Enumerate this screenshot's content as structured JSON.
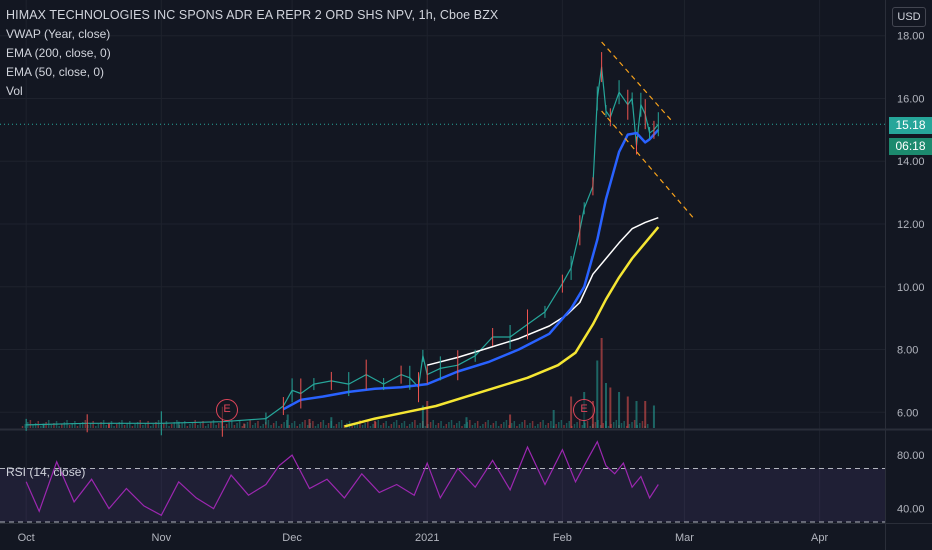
{
  "legend": {
    "title": "HIMAX TECHNOLOGIES INC SPONS ADR EA REPR 2 ORD SHS NPV, 1h, Cboe BZX",
    "indicators": [
      "VWAP (Year, close)",
      "EMA (200, close, 0)",
      "EMA (50, close, 0)",
      "Vol"
    ]
  },
  "currency_button": "USD",
  "last_price_label": "15.18",
  "countdown_label": "06:18",
  "earnings_markers": [
    {
      "label": "E",
      "date": "2020-11-05"
    },
    {
      "label": "E",
      "date": "2021-02-09"
    }
  ],
  "rsi_label": "RSI (14, close)",
  "colors": {
    "background": "#131722",
    "up": "#26a69a",
    "down": "#ef5350",
    "vwap": "#ffffff",
    "ema200": "#f5e633",
    "ema50": "#2962ff",
    "rsi": "#9c27b0",
    "triangle": "#f7a21b",
    "earnings": "#e0455a"
  },
  "chart_data": [
    {
      "type": "line",
      "panel": "price",
      "x_unit": "date",
      "ylim": [
        5.5,
        18.5
      ],
      "y_ticks": [
        "6.00",
        "8.00",
        "10.00",
        "12.00",
        "14.00",
        "16.00",
        "18.00"
      ],
      "x_ticks": [
        "Oct",
        "Nov",
        "Dec",
        "2021",
        "Feb",
        "Mar",
        "Apr"
      ],
      "last_price": 15.18,
      "series": [
        {
          "kind": "price",
          "x": [
            "2020-10-01",
            "2020-10-15",
            "2020-11-01",
            "2020-11-15",
            "2020-11-25",
            "2020-11-29",
            "2020-12-01",
            "2020-12-03",
            "2020-12-06",
            "2020-12-10",
            "2020-12-14",
            "2020-12-18",
            "2020-12-22",
            "2020-12-26",
            "2020-12-28",
            "2020-12-30",
            "2020-12-31",
            "2021-01-01",
            "2021-01-04",
            "2021-01-08",
            "2021-01-12",
            "2021-01-16",
            "2021-01-20",
            "2021-01-24",
            "2021-01-28",
            "2021-02-01",
            "2021-02-03",
            "2021-02-05",
            "2021-02-06",
            "2021-02-08",
            "2021-02-09",
            "2021-02-10",
            "2021-02-11",
            "2021-02-12",
            "2021-02-14",
            "2021-02-16",
            "2021-02-17",
            "2021-02-18",
            "2021-02-19",
            "2021-02-20",
            "2021-02-21",
            "2021-02-22",
            "2021-02-23"
          ],
          "y": [
            5.6,
            5.65,
            5.65,
            5.7,
            5.8,
            6.2,
            6.7,
            6.6,
            6.9,
            7.0,
            6.9,
            7.2,
            6.9,
            7.2,
            7.1,
            6.8,
            7.8,
            7.2,
            7.4,
            7.5,
            7.8,
            8.4,
            8.4,
            8.8,
            9.2,
            10.1,
            10.6,
            11.8,
            12.5,
            13.2,
            16.0,
            17.0,
            15.6,
            15.4,
            16.2,
            15.8,
            16.0,
            14.5,
            15.8,
            15.5,
            14.9,
            15.0,
            15.18
          ]
        },
        {
          "kind": "vwap",
          "x": [
            "2021-01-01",
            "2021-01-08",
            "2021-01-15",
            "2021-01-22",
            "2021-01-29",
            "2021-02-02",
            "2021-02-05",
            "2021-02-08",
            "2021-02-11",
            "2021-02-14",
            "2021-02-17",
            "2021-02-20",
            "2021-02-23"
          ],
          "y": [
            7.5,
            7.75,
            8.05,
            8.35,
            8.75,
            9.1,
            9.5,
            10.4,
            10.9,
            11.4,
            11.85,
            12.05,
            12.2
          ]
        },
        {
          "kind": "ema200",
          "x": [
            "2020-12-13",
            "2020-12-20",
            "2020-12-27",
            "2021-01-03",
            "2021-01-10",
            "2021-01-17",
            "2021-01-24",
            "2021-01-31",
            "2021-02-04",
            "2021-02-08",
            "2021-02-11",
            "2021-02-14",
            "2021-02-17",
            "2021-02-20",
            "2021-02-23"
          ],
          "y": [
            5.55,
            5.8,
            6.0,
            6.2,
            6.5,
            6.8,
            7.1,
            7.5,
            7.9,
            8.8,
            9.6,
            10.3,
            10.9,
            11.4,
            11.9
          ]
        },
        {
          "kind": "ema50",
          "x": [
            "2020-11-29",
            "2020-12-03",
            "2020-12-08",
            "2020-12-14",
            "2020-12-20",
            "2020-12-26",
            "2021-01-01",
            "2021-01-08",
            "2021-01-15",
            "2021-01-22",
            "2021-01-29",
            "2021-02-03",
            "2021-02-06",
            "2021-02-09",
            "2021-02-11",
            "2021-02-14",
            "2021-02-16",
            "2021-02-18",
            "2021-02-20",
            "2021-02-21",
            "2021-02-23"
          ],
          "y": [
            6.1,
            6.4,
            6.5,
            6.65,
            6.75,
            6.8,
            6.9,
            7.3,
            7.6,
            8.0,
            8.5,
            9.3,
            10.0,
            11.5,
            12.8,
            14.3,
            14.85,
            14.9,
            14.6,
            14.7,
            15.0
          ]
        }
      ],
      "annotations": [
        {
          "kind": "trendline",
          "x": [
            "2021-02-10",
            "2021-02-26"
          ],
          "y": [
            17.8,
            15.3
          ]
        },
        {
          "kind": "trendline",
          "x": [
            "2021-02-10",
            "2021-03-03"
          ],
          "y": [
            15.6,
            12.2
          ]
        }
      ]
    },
    {
      "type": "bar",
      "panel": "volume",
      "x": [
        "2020-10-05",
        "2020-10-20",
        "2020-11-05",
        "2020-11-20",
        "2020-11-30",
        "2020-12-05",
        "2020-12-10",
        "2020-12-20",
        "2020-12-31",
        "2021-01-01",
        "2021-01-10",
        "2021-01-20",
        "2021-01-30",
        "2021-02-03",
        "2021-02-06",
        "2021-02-08",
        "2021-02-09",
        "2021-02-10",
        "2021-02-11",
        "2021-02-12",
        "2021-02-14",
        "2021-02-16",
        "2021-02-18",
        "2021-02-20",
        "2021-02-22"
      ],
      "values": [
        0.05,
        0.06,
        0.07,
        0.05,
        0.15,
        0.1,
        0.12,
        0.08,
        0.25,
        0.3,
        0.12,
        0.15,
        0.2,
        0.35,
        0.4,
        0.3,
        0.75,
        1.0,
        0.5,
        0.45,
        0.4,
        0.35,
        0.3,
        0.3,
        0.25
      ]
    },
    {
      "type": "line",
      "panel": "rsi",
      "ylim": [
        30,
        92
      ],
      "y_ticks": [
        "40.00",
        "80.00"
      ],
      "band": [
        30,
        70
      ],
      "x": [
        "2020-10-01",
        "2020-10-04",
        "2020-10-08",
        "2020-10-12",
        "2020-10-16",
        "2020-10-20",
        "2020-10-24",
        "2020-10-28",
        "2020-11-01",
        "2020-11-05",
        "2020-11-09",
        "2020-11-13",
        "2020-11-17",
        "2020-11-21",
        "2020-11-25",
        "2020-11-28",
        "2020-12-01",
        "2020-12-05",
        "2020-12-09",
        "2020-12-13",
        "2020-12-17",
        "2020-12-21",
        "2020-12-25",
        "2020-12-29",
        "2021-01-01",
        "2021-01-04",
        "2021-01-08",
        "2021-01-12",
        "2021-01-16",
        "2021-01-20",
        "2021-01-24",
        "2021-01-28",
        "2021-02-01",
        "2021-02-04",
        "2021-02-07",
        "2021-02-09",
        "2021-02-11",
        "2021-02-13",
        "2021-02-15",
        "2021-02-17",
        "2021-02-19",
        "2021-02-21",
        "2021-02-23"
      ],
      "y": [
        60,
        38,
        75,
        45,
        62,
        40,
        55,
        42,
        35,
        60,
        48,
        40,
        65,
        50,
        58,
        72,
        80,
        55,
        62,
        48,
        66,
        52,
        58,
        50,
        74,
        48,
        70,
        56,
        76,
        54,
        86,
        58,
        84,
        60,
        78,
        90,
        72,
        66,
        74,
        56,
        64,
        48,
        58
      ]
    }
  ]
}
